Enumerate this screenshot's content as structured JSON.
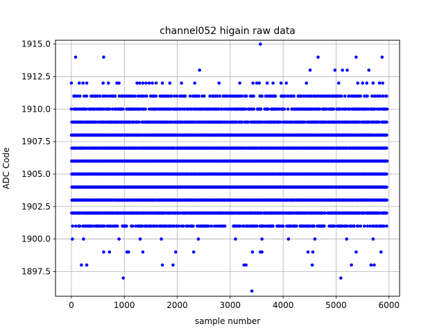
{
  "chart_data": {
    "type": "scatter",
    "title": "channel052 higain raw data",
    "xlabel": "sample number",
    "ylabel": "ADC Code",
    "xlim": [
      -300,
      6200
    ],
    "ylim": [
      1895.6,
      1915.3
    ],
    "xticks": [
      0,
      1000,
      2000,
      3000,
      4000,
      5000,
      6000
    ],
    "xtick_labels": [
      "0",
      "1000",
      "2000",
      "3000",
      "4000",
      "5000",
      "6000"
    ],
    "yticks": [
      1897.5,
      1900.0,
      1902.5,
      1905.0,
      1907.5,
      1910.0,
      1912.5,
      1915.0
    ],
    "ytick_labels": [
      "1897.5",
      "1900.0",
      "1902.5",
      "1905.0",
      "1907.5",
      "1910.0",
      "1912.5",
      "1915.0"
    ],
    "grid": true,
    "marker_color": "#0000ff",
    "sample_count": 6000,
    "dense_levels": [
      1901,
      1902,
      1903,
      1904,
      1905,
      1906,
      1907,
      1908,
      1909,
      1910,
      1911
    ],
    "sparse_points": [
      {
        "x": 80,
        "y": 1914
      },
      {
        "x": 610,
        "y": 1914
      },
      {
        "x": 3570,
        "y": 1915
      },
      {
        "x": 4660,
        "y": 1914
      },
      {
        "x": 5380,
        "y": 1914
      },
      {
        "x": 5870,
        "y": 1914
      },
      {
        "x": 2420,
        "y": 1913
      },
      {
        "x": 4510,
        "y": 1913
      },
      {
        "x": 4980,
        "y": 1913
      },
      {
        "x": 5120,
        "y": 1913
      },
      {
        "x": 5210,
        "y": 1913
      },
      {
        "x": 5620,
        "y": 1913
      },
      {
        "x": 0,
        "y": 1912
      },
      {
        "x": 150,
        "y": 1912
      },
      {
        "x": 220,
        "y": 1912
      },
      {
        "x": 290,
        "y": 1912
      },
      {
        "x": 600,
        "y": 1912
      },
      {
        "x": 700,
        "y": 1912
      },
      {
        "x": 860,
        "y": 1912
      },
      {
        "x": 900,
        "y": 1912
      },
      {
        "x": 1240,
        "y": 1912
      },
      {
        "x": 1290,
        "y": 1912
      },
      {
        "x": 1350,
        "y": 1912
      },
      {
        "x": 1410,
        "y": 1912
      },
      {
        "x": 1470,
        "y": 1912
      },
      {
        "x": 1530,
        "y": 1912
      },
      {
        "x": 1600,
        "y": 1912
      },
      {
        "x": 1720,
        "y": 1912
      },
      {
        "x": 1860,
        "y": 1912
      },
      {
        "x": 2080,
        "y": 1912
      },
      {
        "x": 2330,
        "y": 1912
      },
      {
        "x": 2790,
        "y": 1912
      },
      {
        "x": 3180,
        "y": 1912
      },
      {
        "x": 3430,
        "y": 1912
      },
      {
        "x": 3500,
        "y": 1912
      },
      {
        "x": 3550,
        "y": 1912
      },
      {
        "x": 3700,
        "y": 1912
      },
      {
        "x": 3810,
        "y": 1912
      },
      {
        "x": 3960,
        "y": 1912
      },
      {
        "x": 4060,
        "y": 1912
      },
      {
        "x": 4440,
        "y": 1912
      },
      {
        "x": 5050,
        "y": 1912
      },
      {
        "x": 5410,
        "y": 1912
      },
      {
        "x": 5500,
        "y": 1912
      },
      {
        "x": 5580,
        "y": 1912
      },
      {
        "x": 5700,
        "y": 1912
      },
      {
        "x": 5820,
        "y": 1912
      },
      {
        "x": 5880,
        "y": 1912
      },
      {
        "x": 20,
        "y": 1900
      },
      {
        "x": 230,
        "y": 1900
      },
      {
        "x": 900,
        "y": 1900
      },
      {
        "x": 1300,
        "y": 1900
      },
      {
        "x": 1700,
        "y": 1900
      },
      {
        "x": 2400,
        "y": 1900
      },
      {
        "x": 3100,
        "y": 1900
      },
      {
        "x": 3600,
        "y": 1900
      },
      {
        "x": 4100,
        "y": 1900
      },
      {
        "x": 4600,
        "y": 1900
      },
      {
        "x": 5200,
        "y": 1900
      },
      {
        "x": 5700,
        "y": 1900
      },
      {
        "x": 610,
        "y": 1899
      },
      {
        "x": 720,
        "y": 1899
      },
      {
        "x": 1050,
        "y": 1899
      },
      {
        "x": 1080,
        "y": 1899
      },
      {
        "x": 1350,
        "y": 1899
      },
      {
        "x": 1970,
        "y": 1899
      },
      {
        "x": 2310,
        "y": 1899
      },
      {
        "x": 3420,
        "y": 1899
      },
      {
        "x": 3570,
        "y": 1899
      },
      {
        "x": 3600,
        "y": 1899
      },
      {
        "x": 4470,
        "y": 1899
      },
      {
        "x": 4560,
        "y": 1899
      },
      {
        "x": 5380,
        "y": 1899
      },
      {
        "x": 5850,
        "y": 1899
      },
      {
        "x": 190,
        "y": 1898
      },
      {
        "x": 290,
        "y": 1898
      },
      {
        "x": 1720,
        "y": 1898
      },
      {
        "x": 1920,
        "y": 1898
      },
      {
        "x": 3260,
        "y": 1898
      },
      {
        "x": 3300,
        "y": 1898
      },
      {
        "x": 4550,
        "y": 1898
      },
      {
        "x": 5290,
        "y": 1898
      },
      {
        "x": 5660,
        "y": 1898
      },
      {
        "x": 5720,
        "y": 1898
      },
      {
        "x": 980,
        "y": 1897
      },
      {
        "x": 5090,
        "y": 1897
      },
      {
        "x": 3410,
        "y": 1896
      }
    ]
  }
}
